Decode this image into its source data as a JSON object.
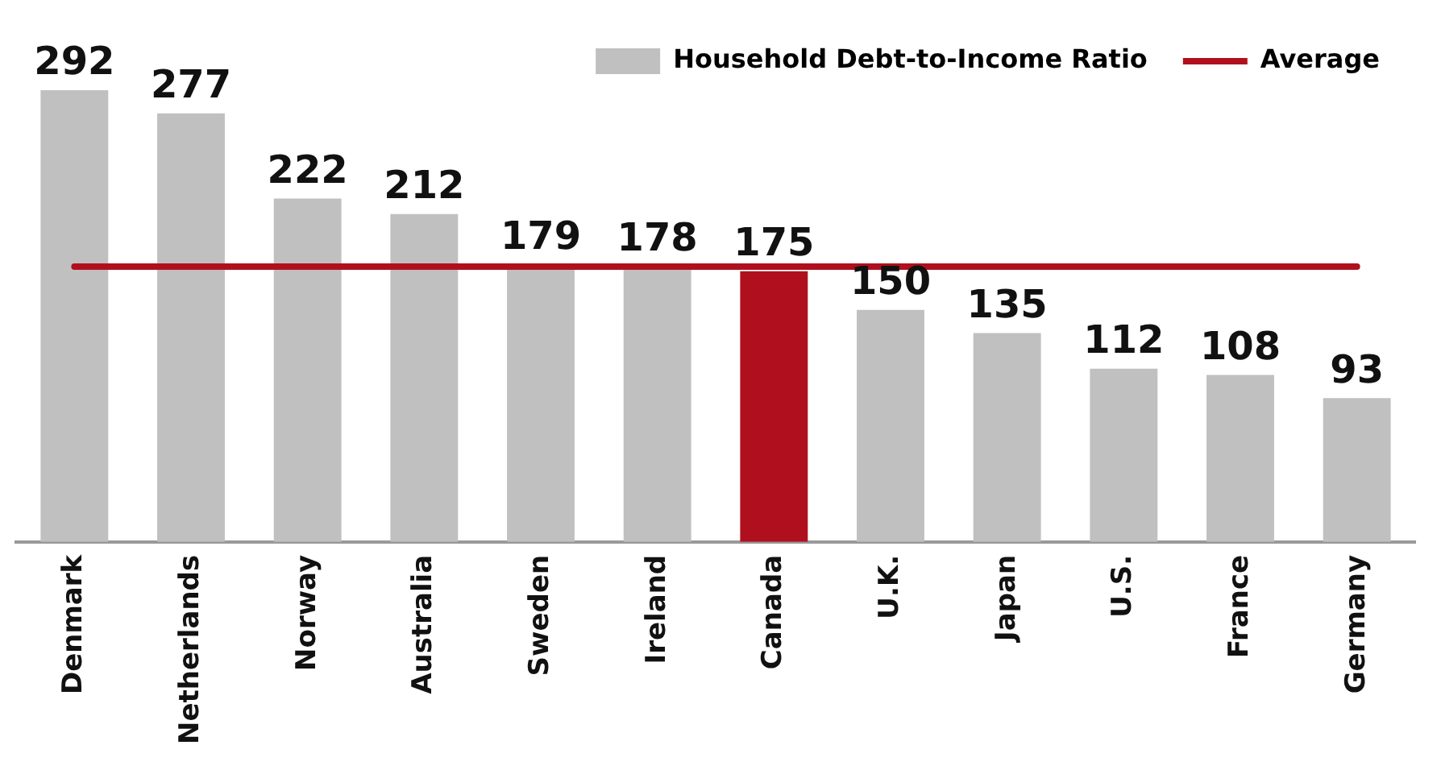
{
  "chart_data": {
    "type": "bar",
    "categories": [
      "Denmark",
      "Netherlands",
      "Norway",
      "Australia",
      "Sweden",
      "Ireland",
      "Canada",
      "U.K.",
      "Japan",
      "U.S.",
      "France",
      "Germany"
    ],
    "series": [
      {
        "name": "Household Debt-to-Income Ratio",
        "color": "#c0c0c0",
        "colors": [
          "#c0c0c0",
          "#c0c0c0",
          "#c0c0c0",
          "#c0c0c0",
          "#c0c0c0",
          "#c0c0c0",
          "#b0101e",
          "#c0c0c0",
          "#c0c0c0",
          "#c0c0c0",
          "#c0c0c0",
          "#c0c0c0"
        ],
        "values": [
          292,
          277,
          222,
          212,
          179,
          178,
          175,
          150,
          135,
          112,
          108,
          93
        ],
        "value_labels": [
          "292",
          "277",
          "222",
          "212",
          "179",
          "178",
          "175",
          "150",
          "135",
          "112",
          "108",
          "93"
        ]
      },
      {
        "name": "Average",
        "type": "line",
        "color": "#b0101e",
        "values": [
          178,
          178,
          178,
          178,
          178,
          178,
          178,
          178,
          178,
          178,
          178,
          178
        ]
      }
    ],
    "legend": "top right",
    "grid": false,
    "marker": "none"
  }
}
